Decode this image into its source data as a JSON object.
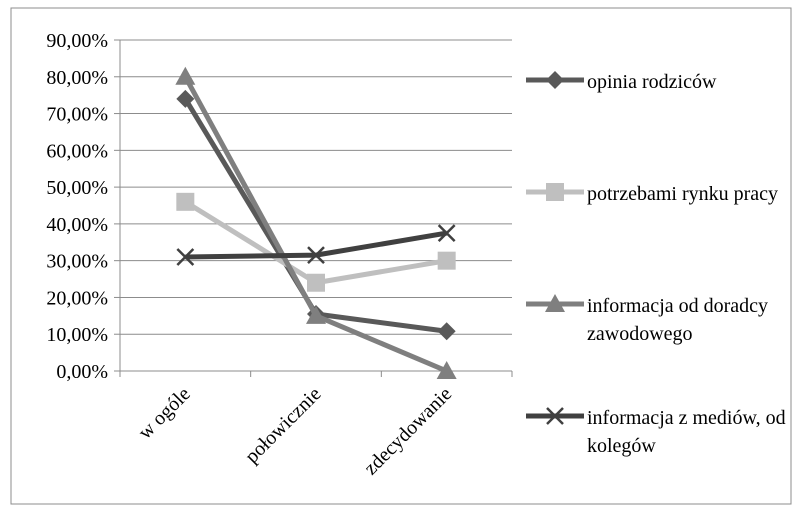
{
  "chart_data": {
    "type": "line",
    "title": "",
    "xlabel": "",
    "ylabel": "",
    "categories": [
      "w ogóle",
      "połowicznie",
      "zdecydowanie"
    ],
    "ylim": [
      0,
      0.9
    ],
    "y_ticks": [
      "0,00%",
      "10,00%",
      "20,00%",
      "30,00%",
      "40,00%",
      "50,00%",
      "60,00%",
      "70,00%",
      "80,00%",
      "90,00%"
    ],
    "grid": true,
    "legend_position": "right",
    "series": [
      {
        "name": "opinia rodziców",
        "values": [
          0.74,
          0.155,
          0.108
        ],
        "color": "#595959",
        "marker": "diamond"
      },
      {
        "name": "potrzebami rynku pracy",
        "values": [
          0.46,
          0.24,
          0.3
        ],
        "color": "#bfbfbf",
        "marker": "square"
      },
      {
        "name": "informacja  od doradcy zawodowego",
        "values": [
          0.8,
          0.15,
          0.0
        ],
        "color": "#7f7f7f",
        "marker": "triangle"
      },
      {
        "name": "informacja z mediów, od kolegów",
        "values": [
          0.31,
          0.315,
          0.375
        ],
        "color": "#404040",
        "marker": "x"
      }
    ]
  }
}
